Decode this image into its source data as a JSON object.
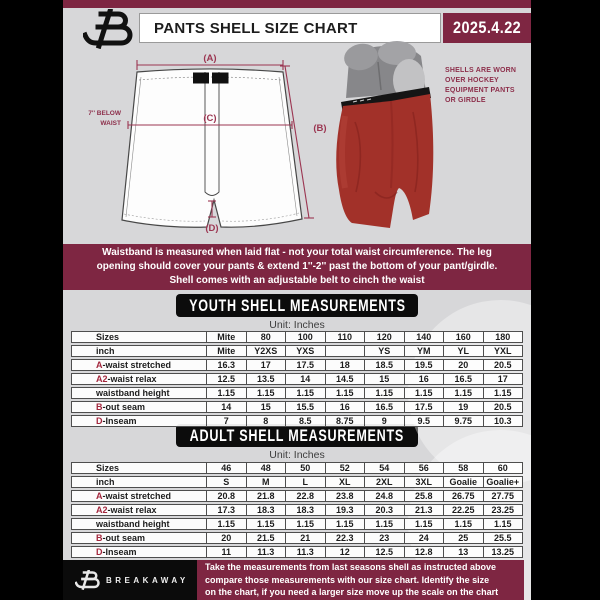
{
  "header": {
    "title": "PANTS SHELL SIZE CHART",
    "date": "2025.4.22"
  },
  "diagram": {
    "label_a": "(A)",
    "label_b": "(B)",
    "label_c": "(C)",
    "label_d": "(D)",
    "waist_note": "7'' BELOW\nWAIST",
    "caption": "SHELLS ARE WORN\nOVER HOCKEY\nEQUIPMENT PANTS\nOR GIRDLE"
  },
  "banner": {
    "text": "Waistband is measured when laid flat - not your total waist circumference. The leg\nopening should cover your pants & extend 1''-2'' past the bottom of your pant/girdle.\nShell comes with an adjustable belt to cinch the waist"
  },
  "youth": {
    "heading": "YOUTH SHELL MEASUREMENTS",
    "unit": "Unit: Inches",
    "rows": [
      {
        "prefix": "",
        "label": "Sizes",
        "values": [
          "Mite",
          "80",
          "100",
          "110",
          "120",
          "140",
          "160",
          "180"
        ]
      },
      {
        "prefix": "",
        "label": "inch",
        "values": [
          "Mite",
          "Y2XS",
          "YXS",
          "",
          "YS",
          "YM",
          "YL",
          "YXL"
        ]
      },
      {
        "prefix": "A",
        "label": "-waist stretched",
        "values": [
          "16.3",
          "17",
          "17.5",
          "18",
          "18.5",
          "19.5",
          "20",
          "20.5"
        ]
      },
      {
        "prefix": "A2",
        "label": "-waist relax",
        "values": [
          "12.5",
          "13.5",
          "14",
          "14.5",
          "15",
          "16",
          "16.5",
          "17"
        ]
      },
      {
        "prefix": "",
        "label": "waistband height",
        "values": [
          "1.15",
          "1.15",
          "1.15",
          "1.15",
          "1.15",
          "1.15",
          "1.15",
          "1.15"
        ]
      },
      {
        "prefix": "B",
        "label": "-out seam",
        "values": [
          "14",
          "15",
          "15.5",
          "16",
          "16.5",
          "17.5",
          "19",
          "20.5"
        ]
      },
      {
        "prefix": "D",
        "label": "-Inseam",
        "values": [
          "7",
          "8",
          "8.5",
          "8.75",
          "9",
          "9.5",
          "9.75",
          "10.3"
        ]
      }
    ]
  },
  "adult": {
    "heading": "ADULT SHELL MEASUREMENTS",
    "unit": "Unit: Inches",
    "rows": [
      {
        "prefix": "",
        "label": "Sizes",
        "values": [
          "46",
          "48",
          "50",
          "52",
          "54",
          "56",
          "58",
          "60"
        ]
      },
      {
        "prefix": "",
        "label": "inch",
        "values": [
          "S",
          "M",
          "L",
          "XL",
          "2XL",
          "3XL",
          "Goalie",
          "Goalie+"
        ]
      },
      {
        "prefix": "A",
        "label": "-waist stretched",
        "values": [
          "20.8",
          "21.8",
          "22.8",
          "23.8",
          "24.8",
          "25.8",
          "26.75",
          "27.75"
        ]
      },
      {
        "prefix": "A2",
        "label": "-waist relax",
        "values": [
          "17.3",
          "18.3",
          "18.3",
          "19.3",
          "20.3",
          "21.3",
          "22.25",
          "23.25"
        ]
      },
      {
        "prefix": "",
        "label": "waistband height",
        "values": [
          "1.15",
          "1.15",
          "1.15",
          "1.15",
          "1.15",
          "1.15",
          "1.15",
          "1.15"
        ]
      },
      {
        "prefix": "B",
        "label": "-out seam",
        "values": [
          "20",
          "21.5",
          "21",
          "22.3",
          "23",
          "24",
          "25",
          "25.5"
        ]
      },
      {
        "prefix": "D",
        "label": "-Inseam",
        "values": [
          "11",
          "11.3",
          "11.3",
          "12",
          "12.5",
          "12.8",
          "13",
          "13.25"
        ]
      }
    ]
  },
  "footer": {
    "brand": "BREAKAWAY",
    "text": "Take the measurements from last seasons shell as instructed above\ncompare those measurements  with our size chart. Identify the size\non the chart, if you need a larger size move up the scale on the chart"
  },
  "colors": {
    "maroon": "#7e2642",
    "shell_red": "#a23129",
    "background_gray": "#d7d7d9",
    "table_line": "#4e4e4e",
    "prefix_red": "#a3273d"
  }
}
